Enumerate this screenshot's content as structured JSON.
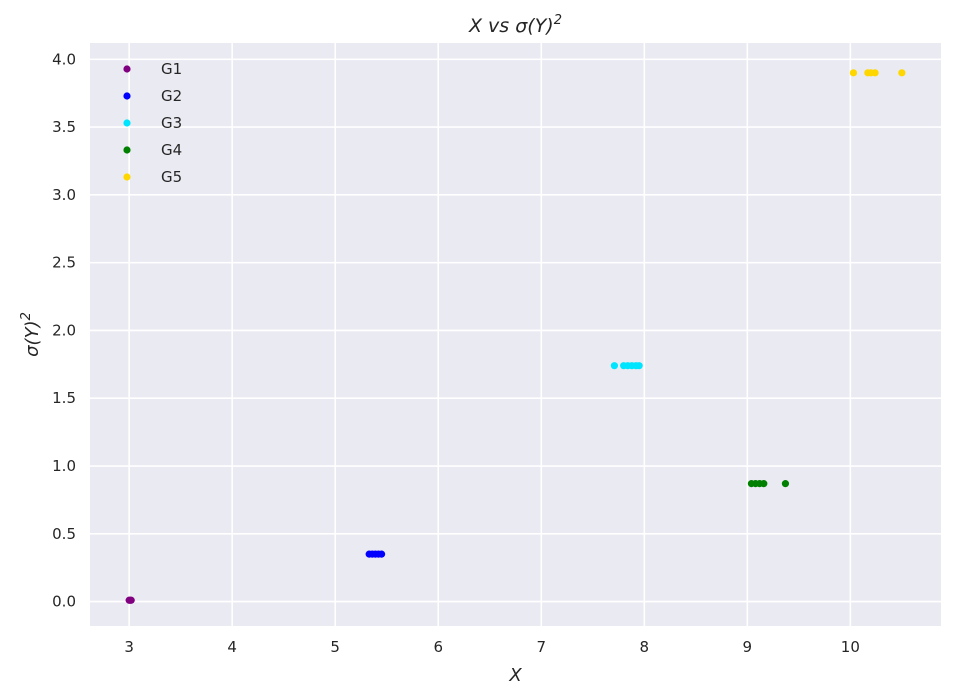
{
  "chart_data": {
    "type": "scatter",
    "title": {
      "pre": "X vs σ(Y)",
      "sup": "2"
    },
    "xlabel": "X",
    "ylabel": {
      "pre": "σ(Y)",
      "sup": "2"
    },
    "xlim": [
      2.62,
      10.88
    ],
    "ylim": [
      -0.18,
      4.12
    ],
    "xticks": [
      3,
      4,
      5,
      6,
      7,
      8,
      9,
      10
    ],
    "xtick_labels": [
      "3",
      "4",
      "5",
      "6",
      "7",
      "8",
      "9",
      "10"
    ],
    "yticks": [
      0.0,
      0.5,
      1.0,
      1.5,
      2.0,
      2.5,
      3.0,
      3.5,
      4.0
    ],
    "ytick_labels": [
      "0.0",
      "0.5",
      "1.0",
      "1.5",
      "2.0",
      "2.5",
      "3.0",
      "3.5",
      "4.0"
    ],
    "grid": true,
    "legend_position": "top-left",
    "background_color": "#eaeaf2",
    "series": [
      {
        "name": "G1",
        "color": "#800080",
        "x": [
          3.0,
          3.01,
          3.02
        ],
        "y": [
          0.01,
          0.01,
          0.01
        ]
      },
      {
        "name": "G2",
        "color": "#0000ff",
        "x": [
          5.33,
          5.36,
          5.39,
          5.42,
          5.45
        ],
        "y": [
          0.35,
          0.35,
          0.35,
          0.35,
          0.35
        ]
      },
      {
        "name": "G3",
        "color": "#00e5ff",
        "x": [
          7.71,
          7.8,
          7.84,
          7.88,
          7.92,
          7.95
        ],
        "y": [
          1.74,
          1.74,
          1.74,
          1.74,
          1.74,
          1.74
        ]
      },
      {
        "name": "G4",
        "color": "#008000",
        "x": [
          9.04,
          9.08,
          9.12,
          9.16,
          9.37
        ],
        "y": [
          0.87,
          0.87,
          0.87,
          0.87,
          0.87
        ]
      },
      {
        "name": "G5",
        "color": "#ffd700",
        "x": [
          10.03,
          10.17,
          10.2,
          10.24,
          10.5
        ],
        "y": [
          3.9,
          3.9,
          3.9,
          3.9,
          3.9
        ]
      }
    ]
  }
}
